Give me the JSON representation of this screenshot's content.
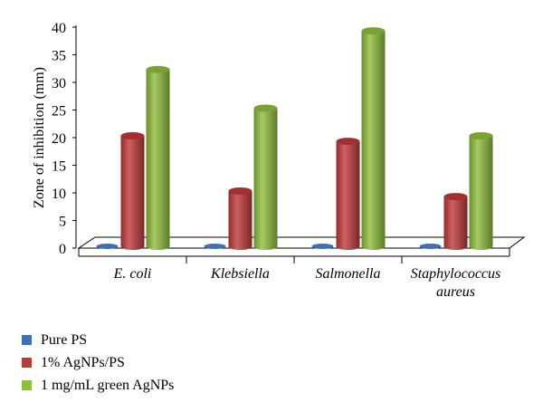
{
  "chart_data": {
    "type": "bar",
    "title": "",
    "xlabel": "",
    "ylabel": "Zone of inhibition (mm)",
    "ylim": [
      0,
      40
    ],
    "yticks": [
      0,
      5,
      10,
      15,
      20,
      25,
      30,
      35,
      40
    ],
    "categories": [
      [
        "E. coli"
      ],
      [
        "Klebsiella"
      ],
      [
        "Salmonella"
      ],
      [
        "Staphylococcus",
        "aureus"
      ]
    ],
    "series": [
      {
        "name": "Pure PS",
        "color": "#3f6fb5",
        "values": [
          0,
          0,
          0,
          0
        ]
      },
      {
        "name": "1% AgNPs/PS",
        "color": "#c0393a",
        "values": [
          20,
          10,
          19,
          9
        ]
      },
      {
        "name": "1 mg/mL green AgNPs",
        "color": "#8fbe3c",
        "values": [
          32,
          25,
          39,
          20
        ]
      }
    ],
    "grid": false,
    "legend_position": "bottom-left",
    "style": "3d-cylinder"
  }
}
